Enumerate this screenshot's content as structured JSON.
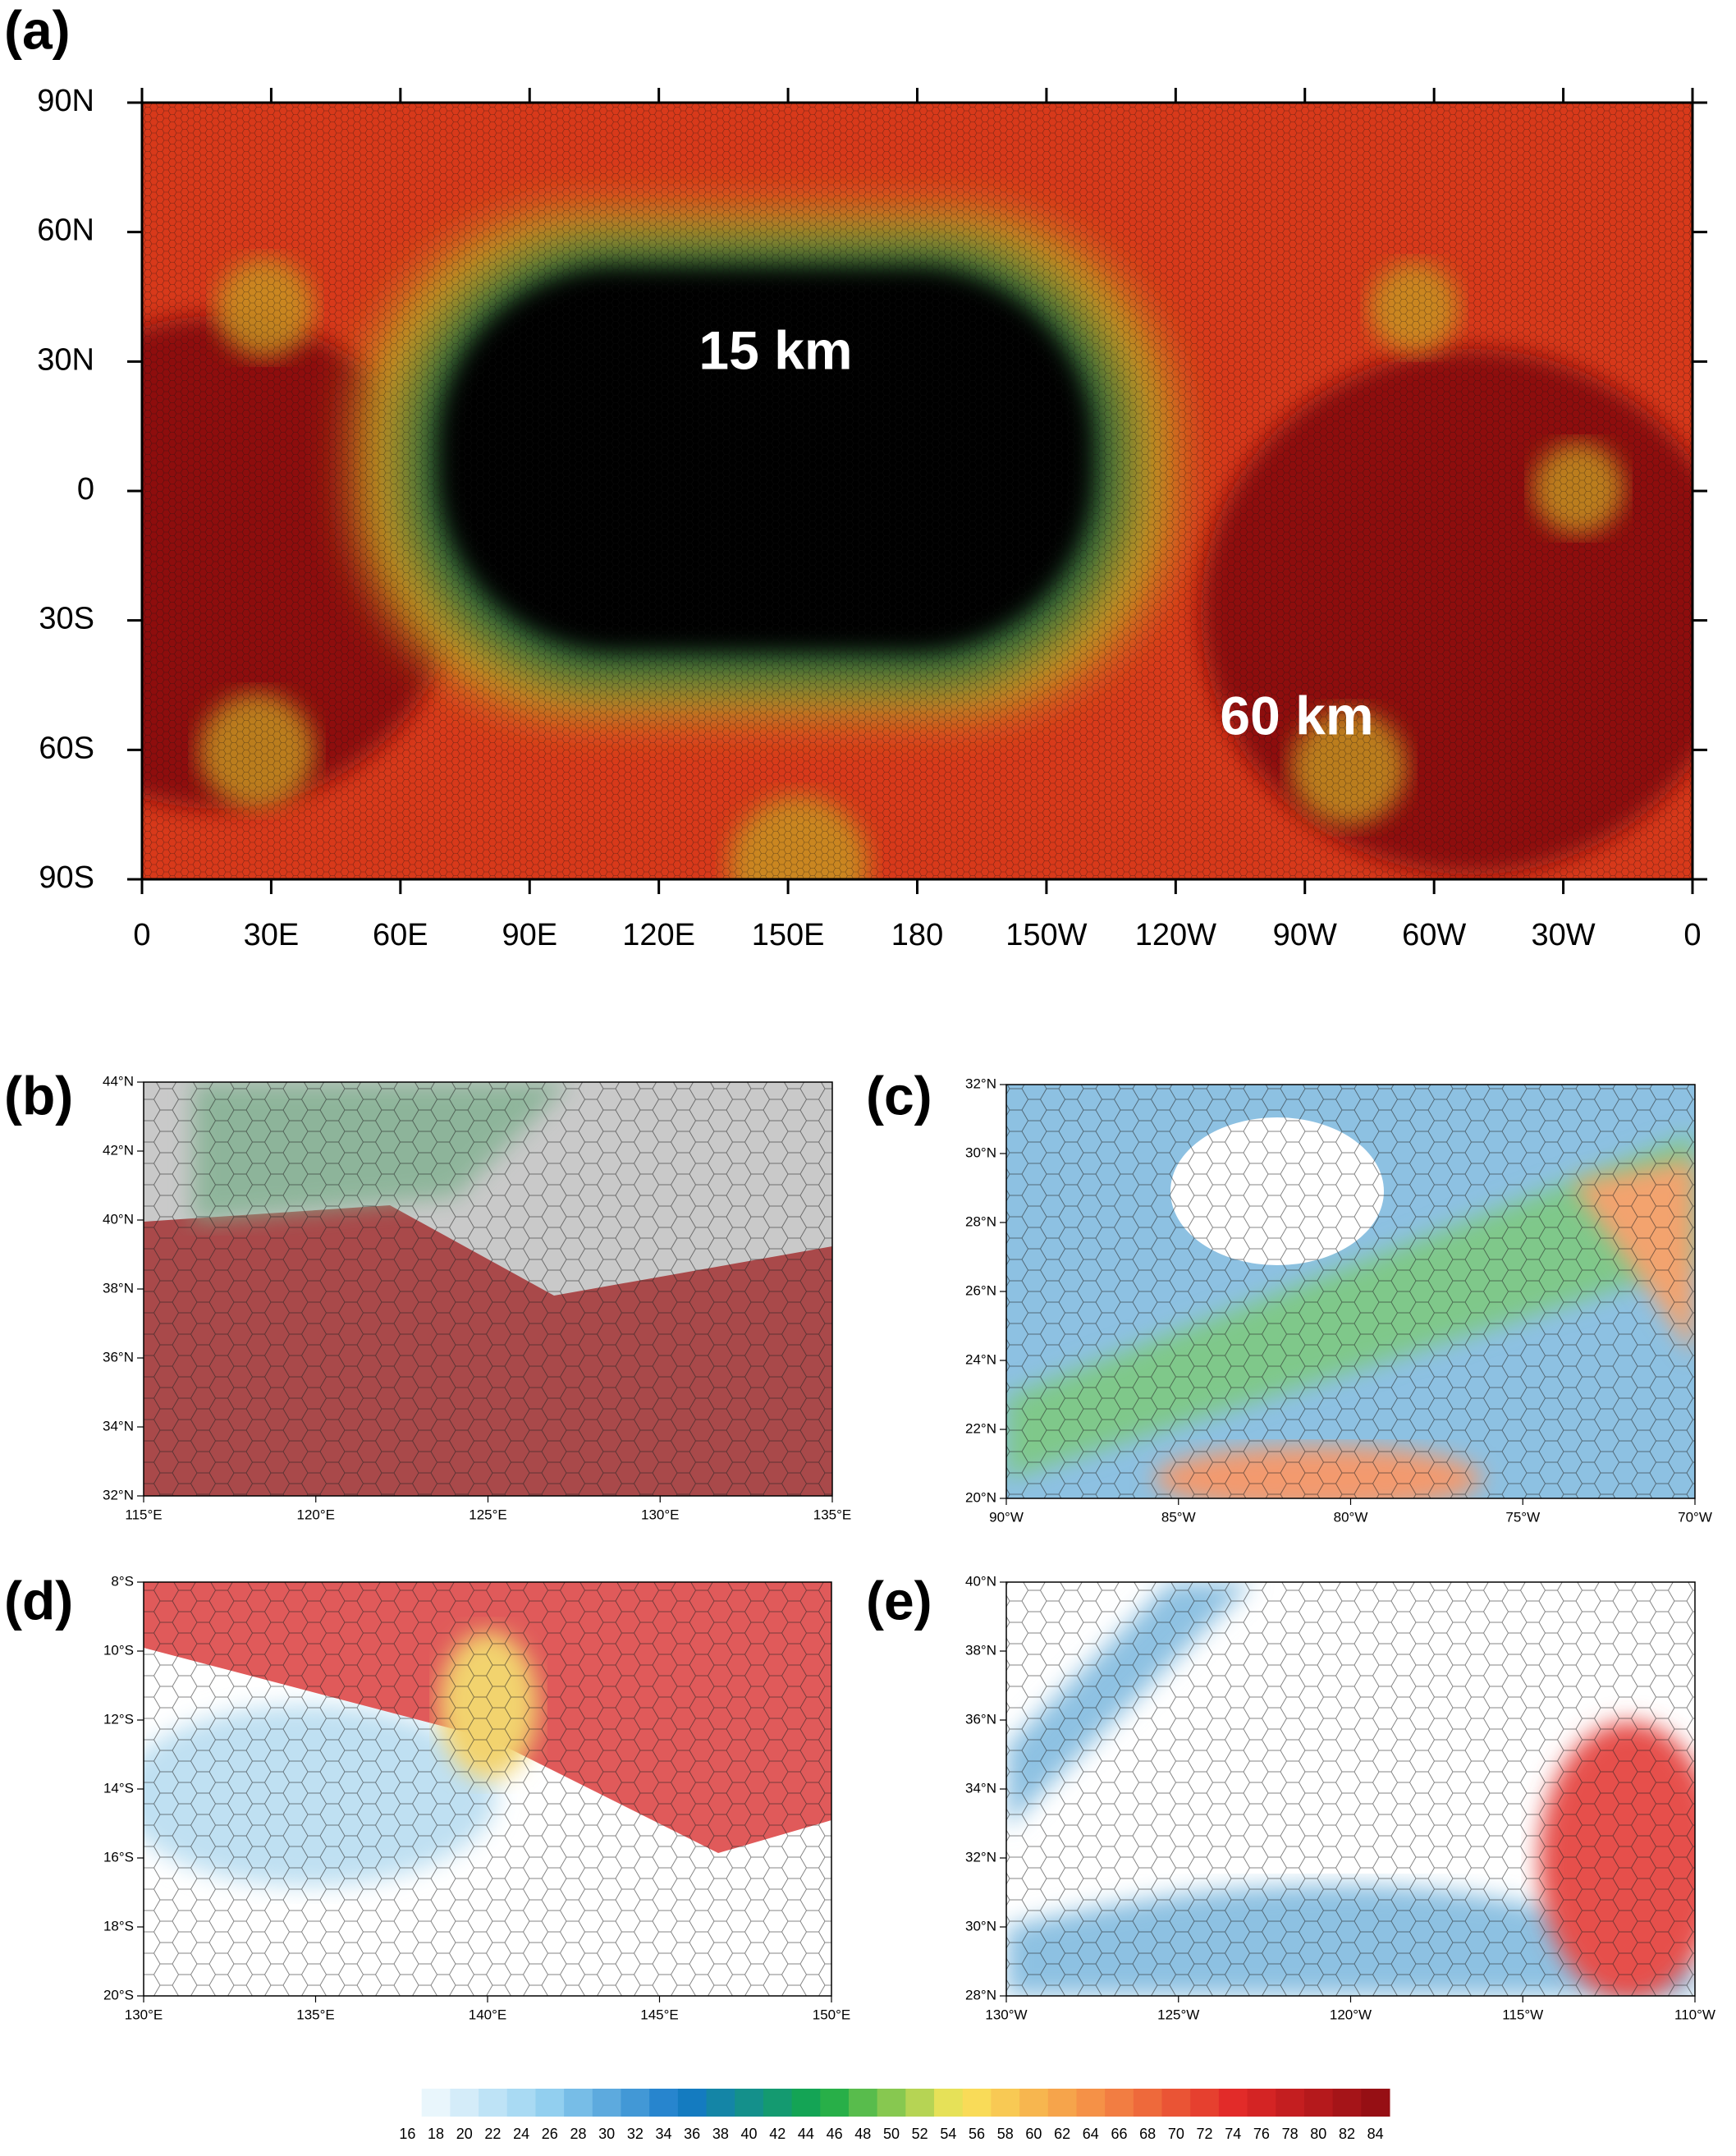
{
  "panels": [
    {
      "label": "(a)",
      "yticks": [
        "90N",
        "60N",
        "30N",
        "0",
        "30S",
        "60S",
        "90S"
      ],
      "xticks": [
        "0",
        "30E",
        "60E",
        "90E",
        "120E",
        "150E",
        "180",
        "150W",
        "120W",
        "90W",
        "60W",
        "30W",
        "0"
      ],
      "annotations": [
        "15 km",
        "60 km"
      ]
    },
    {
      "label": "(b)",
      "yticks": [
        "44°N",
        "42°N",
        "40°N",
        "38°N",
        "36°N",
        "34°N",
        "32°N"
      ],
      "xticks": [
        "115°E",
        "120°E",
        "125°E",
        "130°E",
        "135°E"
      ]
    },
    {
      "label": "(c)",
      "yticks": [
        "32°N",
        "30°N",
        "28°N",
        "26°N",
        "24°N",
        "22°N",
        "20°N"
      ],
      "xticks": [
        "90°W",
        "85°W",
        "80°W",
        "75°W",
        "70°W"
      ]
    },
    {
      "label": "(d)",
      "yticks": [
        "8°S",
        "10°S",
        "12°S",
        "14°S",
        "16°S",
        "18°S",
        "20°S"
      ],
      "xticks": [
        "130°E",
        "135°E",
        "140°E",
        "145°E",
        "150°E"
      ]
    },
    {
      "label": "(e)",
      "yticks": [
        "40°N",
        "38°N",
        "36°N",
        "34°N",
        "32°N",
        "30°N",
        "28°N"
      ],
      "xticks": [
        "130°W",
        "125°W",
        "120°W",
        "115°W",
        "110°W"
      ]
    }
  ],
  "colorbar": {
    "ticks": [
      16,
      18,
      20,
      22,
      24,
      26,
      28,
      30,
      32,
      34,
      36,
      38,
      40,
      42,
      44,
      46,
      48,
      50,
      52,
      54,
      56,
      58,
      60,
      62,
      64,
      66,
      68,
      70,
      72,
      74,
      76,
      78,
      80,
      82,
      84
    ]
  }
}
